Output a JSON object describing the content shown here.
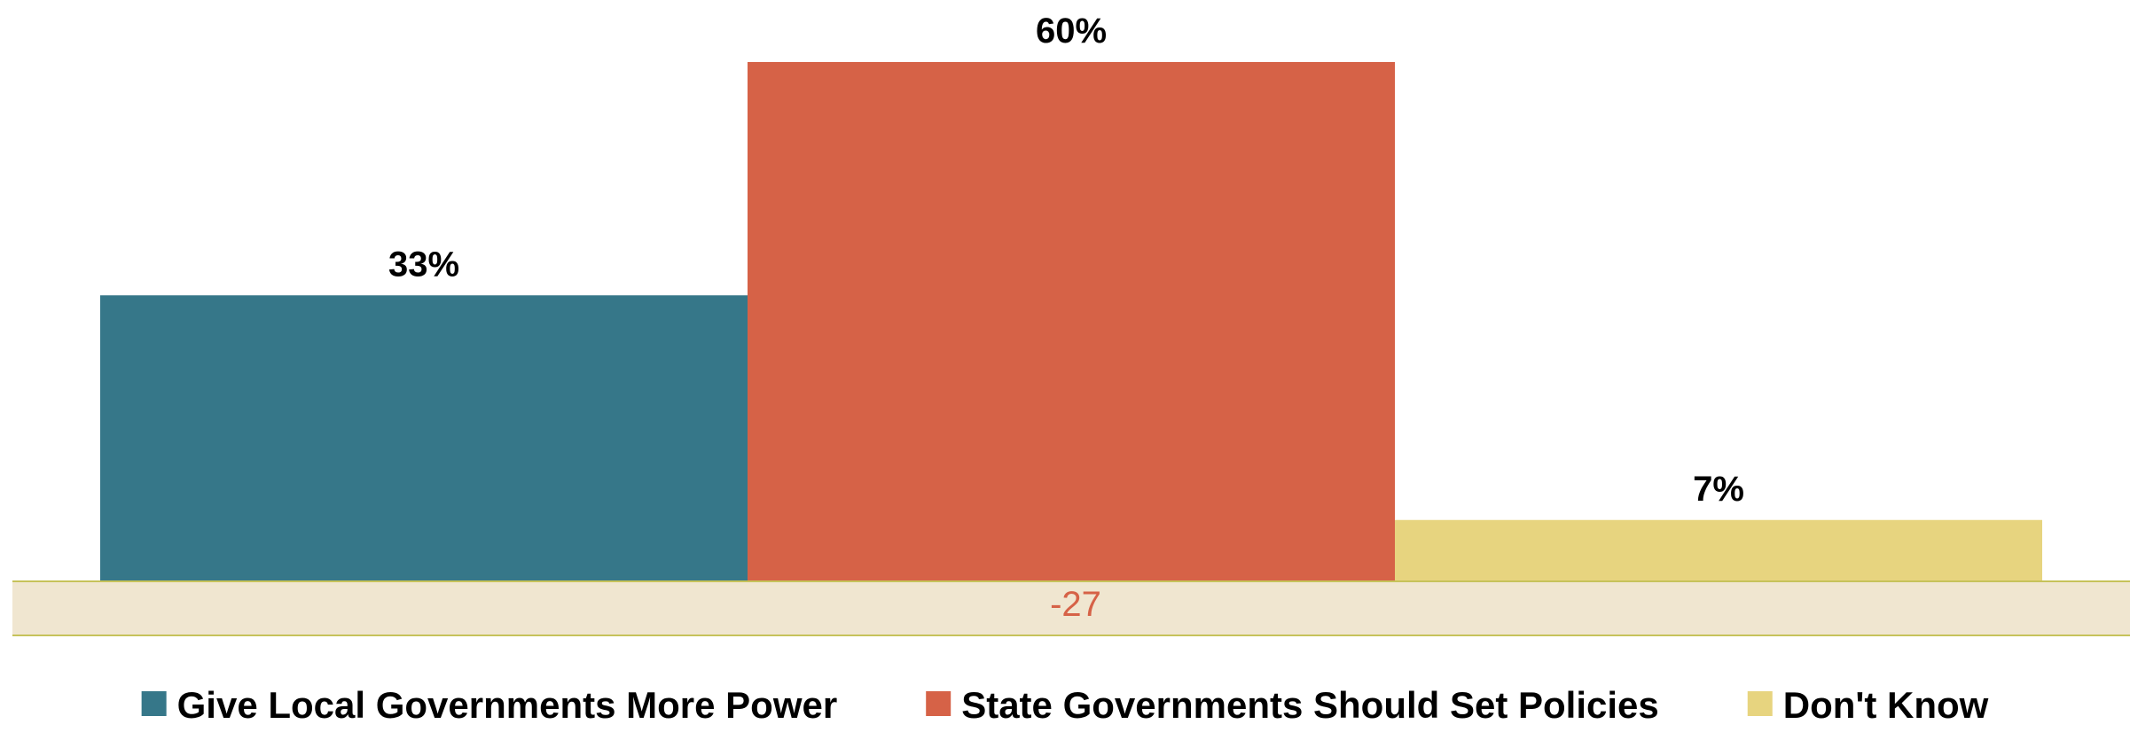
{
  "chart_data": {
    "type": "bar",
    "categories": [
      "Give Local Governments More Power",
      "State Governments Should Set Policies",
      "Don't Know"
    ],
    "values": [
      33,
      60,
      7
    ],
    "labels": [
      "33%",
      "60%",
      "7%"
    ],
    "colors": [
      "#367789",
      "#d66247",
      "#e7d47f"
    ],
    "unit": "%",
    "ylim": [
      0,
      60
    ],
    "grid": false,
    "legend": {
      "position": "bottom",
      "entries": [
        "Give Local Governments More Power",
        "State Governments Should Set Policies",
        "Don't Know"
      ]
    },
    "net_band": {
      "label": "-27",
      "band_color": "#f0e6d0",
      "border_color": "#c6c25a",
      "text_color": "#d66247"
    }
  }
}
